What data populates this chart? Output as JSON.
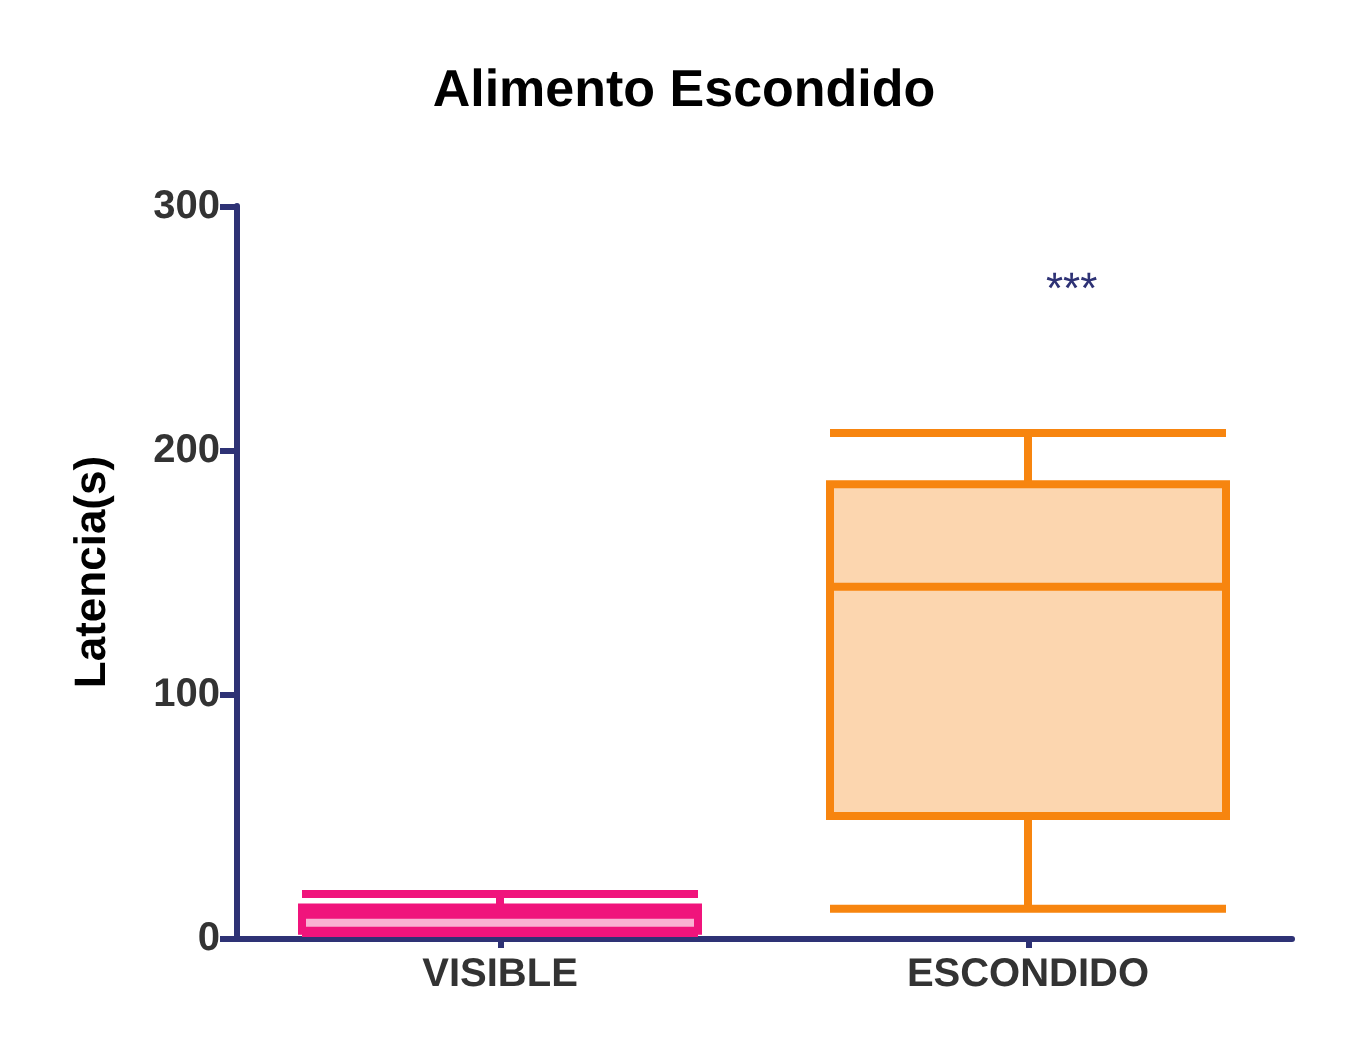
{
  "chart_data": {
    "type": "box",
    "title": "Alimento Escondido",
    "ylabel": "Latencia(s)",
    "categories": [
      "VISIBLE",
      "ESCONDIDO"
    ],
    "boxes": [
      {
        "low": 2,
        "q1": 3,
        "median": 9.5,
        "q3": 12.5,
        "high": 18
      },
      {
        "low": 12,
        "q1": 50,
        "median": 144,
        "q3": 186,
        "high": 207
      }
    ],
    "colors": [
      "#f0147c",
      "#f7850f"
    ],
    "ylim": [
      0,
      300
    ],
    "yticks": [
      0,
      100,
      200,
      300
    ],
    "grid": false,
    "annotations": [
      "***"
    ]
  }
}
